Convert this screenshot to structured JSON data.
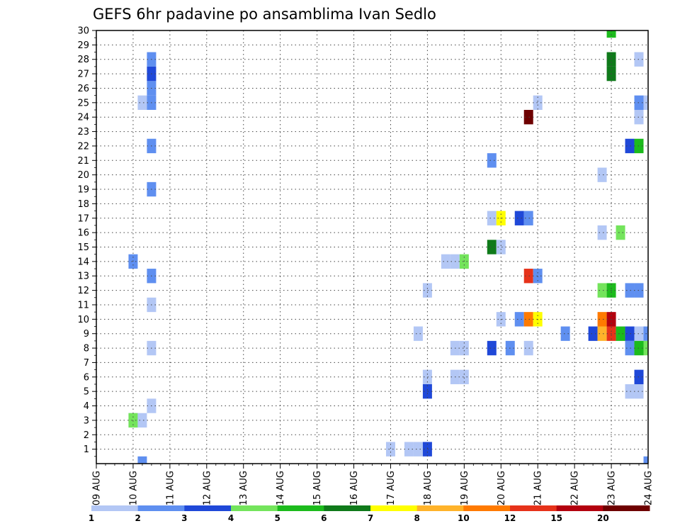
{
  "chart_data": {
    "type": "heatmap",
    "title": "GEFS 6hr padavine po ansamblima Ivan Sedlo",
    "xlabel": "",
    "ylabel": "",
    "x_ticks": [
      "09 AUG",
      "10 AUG",
      "11 AUG",
      "12 AUG",
      "13 AUG",
      "14 AUG",
      "15 AUG",
      "16 AUG",
      "17 AUG",
      "18 AUG",
      "19 AUG",
      "20 AUG",
      "21 AUG",
      "22 AUG",
      "23 AUG",
      "24 AUG"
    ],
    "x_range": [
      0,
      15
    ],
    "y_range": [
      0,
      30
    ],
    "y_ticks": [
      1,
      2,
      3,
      4,
      5,
      6,
      7,
      8,
      9,
      10,
      11,
      12,
      13,
      14,
      15,
      16,
      17,
      18,
      19,
      20,
      21,
      22,
      23,
      24,
      25,
      26,
      27,
      28,
      29,
      30
    ],
    "time_step_days": 0.25,
    "grid": true,
    "legend_position": "bottom",
    "color_levels": [
      {
        "label": "1",
        "color": "#b3c7f5"
      },
      {
        "label": "2",
        "color": "#5f8ff0"
      },
      {
        "label": "3",
        "color": "#1f48d8"
      },
      {
        "label": "4",
        "color": "#74e45c"
      },
      {
        "label": "5",
        "color": "#1cbb1c"
      },
      {
        "label": "6",
        "color": "#0f7a1a"
      },
      {
        "label": "7",
        "color": "#ffff00"
      },
      {
        "label": "8",
        "color": "#ffb32a"
      },
      {
        "label": "10",
        "color": "#ff7a00"
      },
      {
        "label": "12",
        "color": "#e6321a"
      },
      {
        "label": "15",
        "color": "#b3000e"
      },
      {
        "label": "20",
        "color": "#6e0000"
      }
    ],
    "cells": [
      {
        "x": 1.25,
        "member": 0,
        "level": 1
      },
      {
        "x": 1.0,
        "member": 3,
        "level": 0
      },
      {
        "x": 1.0,
        "member": 3,
        "level": 3
      },
      {
        "x": 1.25,
        "member": 3,
        "level": 0
      },
      {
        "x": 1.5,
        "member": 4,
        "level": 0
      },
      {
        "x": 1.5,
        "member": 8,
        "level": 0
      },
      {
        "x": 1.5,
        "member": 11,
        "level": 0
      },
      {
        "x": 1.5,
        "member": 13,
        "level": 1
      },
      {
        "x": 1.0,
        "member": 14,
        "level": 1
      },
      {
        "x": 1.5,
        "member": 19,
        "level": 1
      },
      {
        "x": 1.5,
        "member": 22,
        "level": 1
      },
      {
        "x": 1.25,
        "member": 25,
        "level": 0
      },
      {
        "x": 1.5,
        "member": 25,
        "level": 1
      },
      {
        "x": 1.5,
        "member": 26,
        "level": 1
      },
      {
        "x": 1.5,
        "member": 27,
        "level": 2
      },
      {
        "x": 1.5,
        "member": 28,
        "level": 1
      },
      {
        "x": 8.0,
        "member": 1,
        "level": 0
      },
      {
        "x": 8.5,
        "member": 1,
        "level": 0
      },
      {
        "x": 8.75,
        "member": 1,
        "level": 0
      },
      {
        "x": 9.0,
        "member": 1,
        "level": 2
      },
      {
        "x": 9.0,
        "member": 5,
        "level": 2
      },
      {
        "x": 9.0,
        "member": 6,
        "level": 0
      },
      {
        "x": 9.0,
        "member": 12,
        "level": 0
      },
      {
        "x": 8.75,
        "member": 9,
        "level": 0
      },
      {
        "x": 9.75,
        "member": 6,
        "level": 0
      },
      {
        "x": 10.0,
        "member": 6,
        "level": 0
      },
      {
        "x": 9.75,
        "member": 8,
        "level": 0
      },
      {
        "x": 10.0,
        "member": 8,
        "level": 0
      },
      {
        "x": 9.5,
        "member": 14,
        "level": 0
      },
      {
        "x": 9.75,
        "member": 14,
        "level": 0
      },
      {
        "x": 10.0,
        "member": 14,
        "level": 3
      },
      {
        "x": 10.75,
        "member": 8,
        "level": 2
      },
      {
        "x": 11.25,
        "member": 8,
        "level": 1
      },
      {
        "x": 11.75,
        "member": 8,
        "level": 0
      },
      {
        "x": 11.0,
        "member": 10,
        "level": 0
      },
      {
        "x": 11.5,
        "member": 10,
        "level": 1
      },
      {
        "x": 11.75,
        "member": 10,
        "level": 8
      },
      {
        "x": 12.0,
        "member": 10,
        "level": 6
      },
      {
        "x": 11.75,
        "member": 13,
        "level": 9
      },
      {
        "x": 12.0,
        "member": 13,
        "level": 1
      },
      {
        "x": 10.75,
        "member": 15,
        "level": 5
      },
      {
        "x": 11.0,
        "member": 15,
        "level": 0
      },
      {
        "x": 10.75,
        "member": 17,
        "level": 0
      },
      {
        "x": 11.0,
        "member": 17,
        "level": 6
      },
      {
        "x": 11.5,
        "member": 17,
        "level": 2
      },
      {
        "x": 11.75,
        "member": 17,
        "level": 1
      },
      {
        "x": 10.75,
        "member": 21,
        "level": 1
      },
      {
        "x": 11.75,
        "member": 24,
        "level": 11
      },
      {
        "x": 12.0,
        "member": 25,
        "level": 0
      },
      {
        "x": 12.75,
        "member": 9,
        "level": 1
      },
      {
        "x": 13.5,
        "member": 9,
        "level": 2
      },
      {
        "x": 13.75,
        "member": 9,
        "level": 7
      },
      {
        "x": 14.0,
        "member": 9,
        "level": 9
      },
      {
        "x": 14.25,
        "member": 9,
        "level": 4
      },
      {
        "x": 14.5,
        "member": 9,
        "level": 2
      },
      {
        "x": 14.75,
        "member": 9,
        "level": 0
      },
      {
        "x": 15.0,
        "member": 9,
        "level": 1
      },
      {
        "x": 13.75,
        "member": 10,
        "level": 8
      },
      {
        "x": 14.0,
        "member": 10,
        "level": 10
      },
      {
        "x": 13.75,
        "member": 12,
        "level": 3
      },
      {
        "x": 14.0,
        "member": 12,
        "level": 4
      },
      {
        "x": 14.5,
        "member": 12,
        "level": 1
      },
      {
        "x": 14.75,
        "member": 12,
        "level": 1
      },
      {
        "x": 13.75,
        "member": 16,
        "level": 0
      },
      {
        "x": 14.25,
        "member": 16,
        "level": 3
      },
      {
        "x": 13.75,
        "member": 20,
        "level": 0
      },
      {
        "x": 14.0,
        "member": 27,
        "level": 5
      },
      {
        "x": 14.0,
        "member": 28,
        "level": 5
      },
      {
        "x": 14.0,
        "member": 30,
        "level": 4
      },
      {
        "x": 14.5,
        "member": 5,
        "level": 0
      },
      {
        "x": 14.75,
        "member": 5,
        "level": 0
      },
      {
        "x": 14.75,
        "member": 6,
        "level": 2
      },
      {
        "x": 14.5,
        "member": 8,
        "level": 1
      },
      {
        "x": 14.75,
        "member": 8,
        "level": 4
      },
      {
        "x": 15.0,
        "member": 8,
        "level": 3
      },
      {
        "x": 14.5,
        "member": 22,
        "level": 2
      },
      {
        "x": 14.75,
        "member": 22,
        "level": 4
      },
      {
        "x": 14.75,
        "member": 24,
        "level": 0
      },
      {
        "x": 14.75,
        "member": 25,
        "level": 1
      },
      {
        "x": 15.0,
        "member": 25,
        "level": 0
      },
      {
        "x": 14.75,
        "member": 28,
        "level": 0
      },
      {
        "x": 15.0,
        "member": 0,
        "level": 1
      }
    ]
  }
}
